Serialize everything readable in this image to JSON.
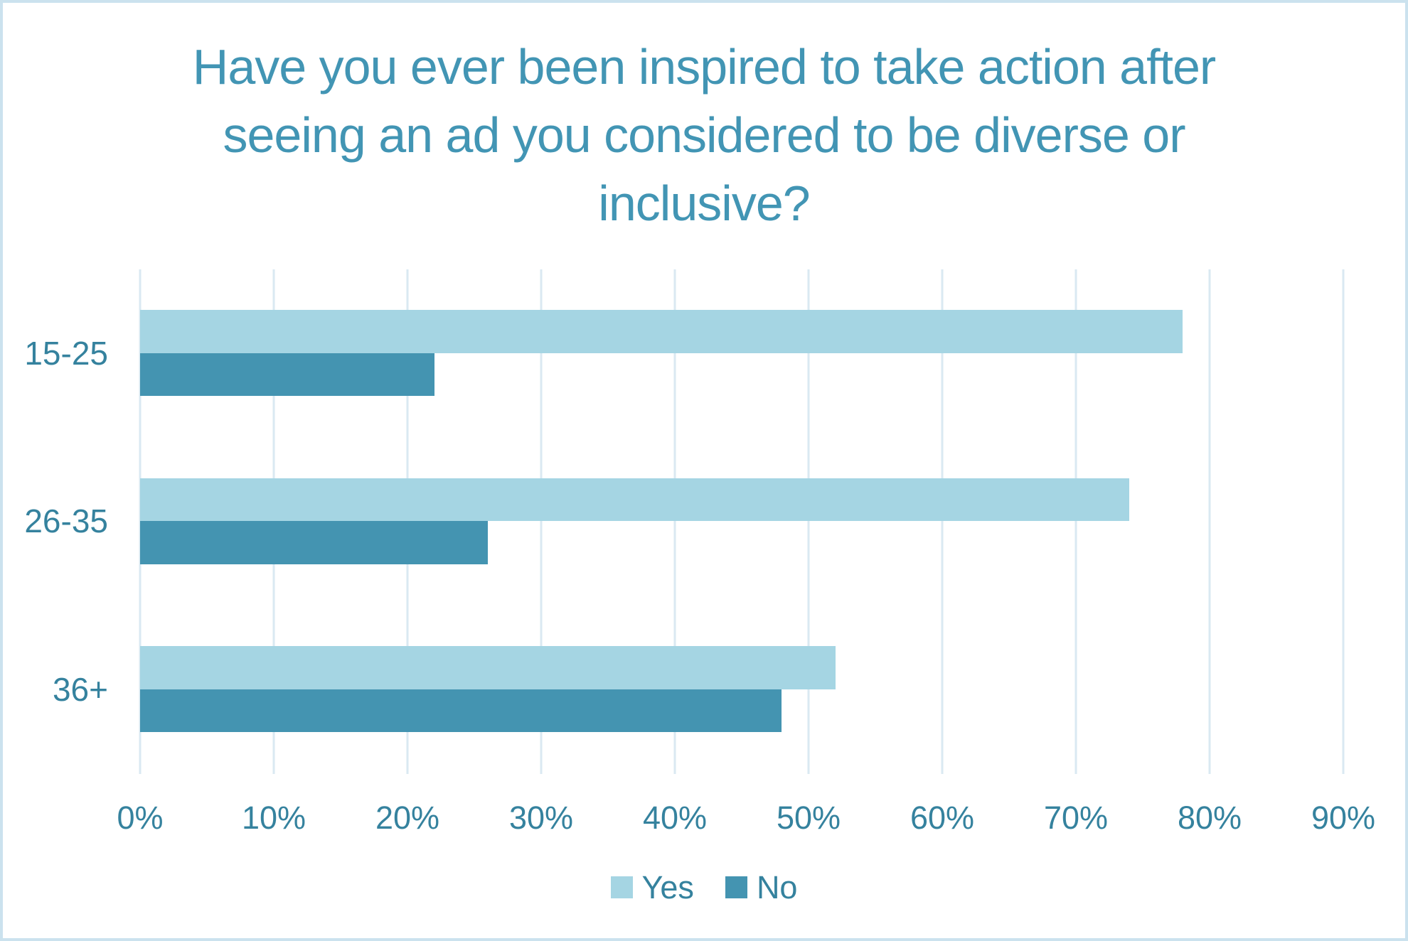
{
  "chart_data": {
    "type": "bar",
    "orientation": "horizontal",
    "title": "Have you ever been inspired to take action after seeing an ad you considered to be diverse or inclusive?",
    "title_lines": [
      "Have you ever been inspired to take action after",
      "seeing an ad you considered to be diverse or",
      "inclusive?"
    ],
    "categories": [
      "15-25",
      "26-35",
      "36+"
    ],
    "series": [
      {
        "name": "Yes",
        "values": [
          78,
          74,
          52
        ],
        "color": "#a5d5e3"
      },
      {
        "name": "No",
        "values": [
          22,
          26,
          48
        ],
        "color": "#4494b1"
      }
    ],
    "x_axis": {
      "min": 0,
      "max": 100,
      "tick_step": 10,
      "ticks": [
        "0%",
        "10%",
        "20%",
        "30%",
        "40%",
        "50%",
        "60%",
        "70%",
        "80%",
        "90%"
      ],
      "unit": "%"
    },
    "xlabel": "",
    "ylabel": "",
    "grid": true,
    "legend": {
      "position": "bottom",
      "entries": [
        "Yes",
        "No"
      ]
    },
    "colors": {
      "title_text": "#4295b4",
      "axis_text": "#35829e",
      "gridline": "#dae9f2",
      "frame_border": "#cbe2ee",
      "background": "#ffffff"
    }
  }
}
